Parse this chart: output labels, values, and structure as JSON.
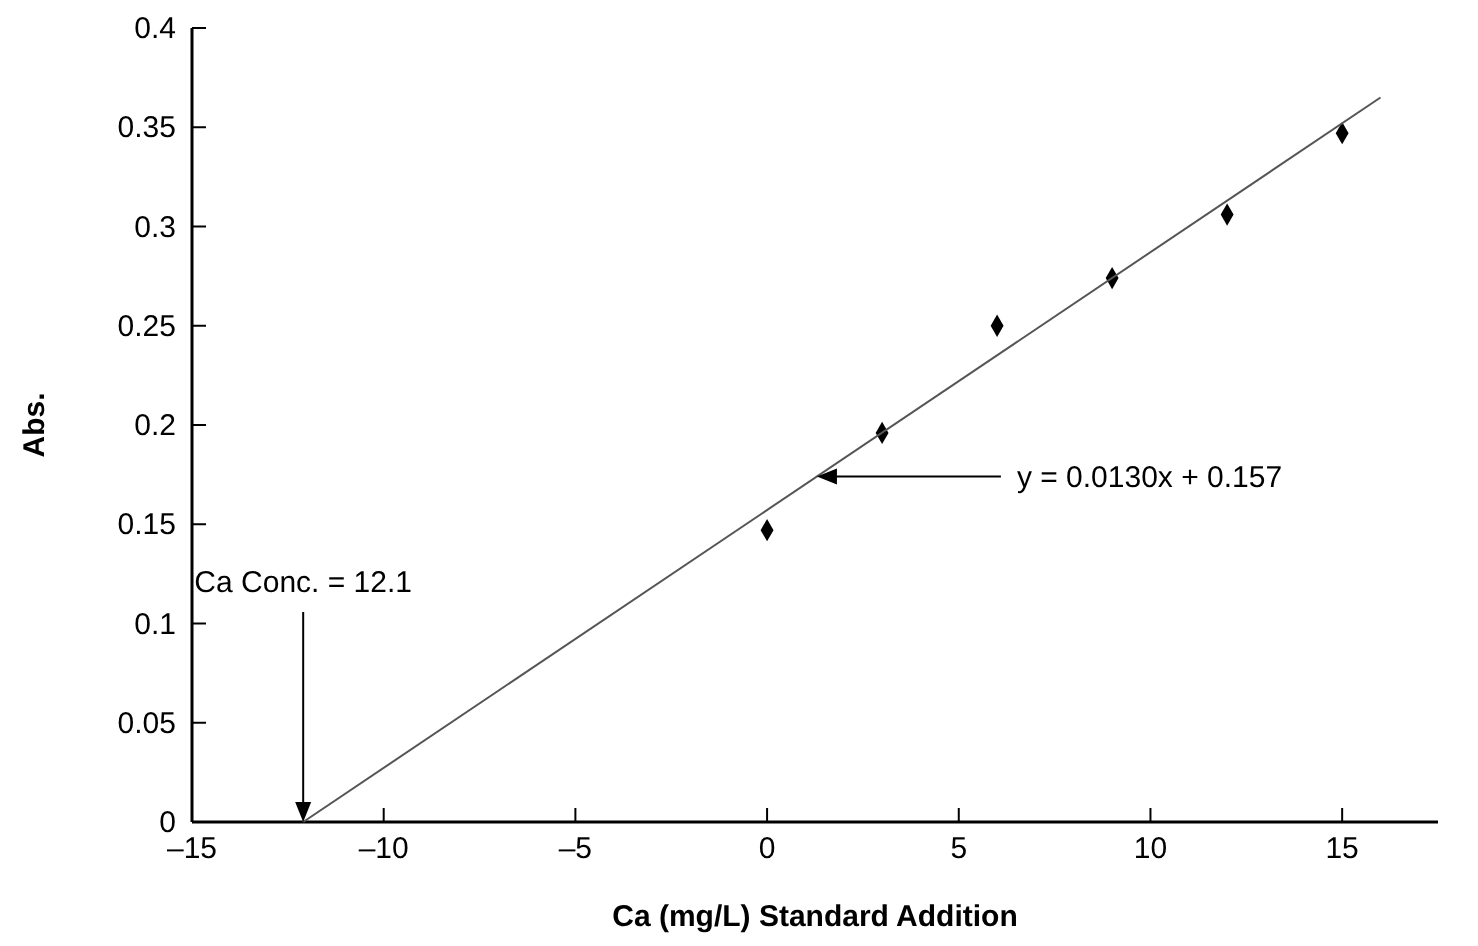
{
  "chart_data": {
    "type": "scatter",
    "xlabel": "Ca (mg/L) Standard Addition",
    "ylabel": "Abs.",
    "xlim": [
      -15,
      17.5
    ],
    "ylim": [
      0,
      0.4
    ],
    "xticks": [
      {
        "value": -15,
        "label": "–15"
      },
      {
        "value": -10,
        "label": "–10"
      },
      {
        "value": -5,
        "label": "–5"
      },
      0,
      5,
      10,
      15
    ],
    "yticks": [
      0,
      0.05,
      0.1,
      0.15,
      0.2,
      0.25,
      0.3,
      0.35,
      0.4
    ],
    "grid": false,
    "series": [
      {
        "color": "#000000",
        "marker": "diamond",
        "x": [
          0,
          3,
          6,
          9,
          12,
          15
        ],
        "values": [
          0.147,
          0.196,
          0.25,
          0.274,
          0.306,
          0.347
        ]
      },
      {
        "type": "line",
        "color": "#555555",
        "marker": "none",
        "line_style": "solid",
        "x": [
          -12.1,
          16
        ],
        "values": [
          0,
          0.365
        ]
      }
    ],
    "annotations": [
      {
        "text": "y = 0.0130x + 0.157",
        "x": 1.3,
        "y": 0.174
      },
      "Ca Conc. = 12.1"
    ]
  }
}
